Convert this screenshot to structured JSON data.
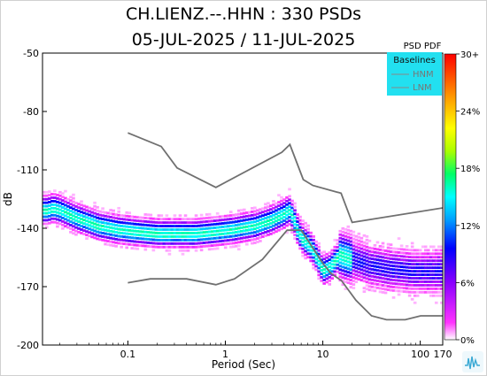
{
  "header": {
    "title": "CH.LIENZ.--.HHN : 330 PSDs",
    "date_range": "05-JUL-2025 / 11-JUL-2025"
  },
  "colorbar": {
    "title": "PSD PDF",
    "ticks": [
      "30+",
      "24%",
      "18%",
      "12%",
      "6%",
      "0%"
    ]
  },
  "legend": {
    "title": "Baselines",
    "items": [
      "HNM",
      "LNM"
    ],
    "background": "#22e0f0"
  },
  "chart_data": {
    "type": "heatmap",
    "title": "CH.LIENZ.--.HHN : 330 PSDs",
    "subtitle": "05-JUL-2025 / 11-JUL-2025",
    "xlabel": "Period (Sec)",
    "ylabel": "dB",
    "xscale": "log",
    "xlim": [
      0.0133,
      170
    ],
    "ylim": [
      -200,
      -50
    ],
    "xticks": [
      0.1,
      1,
      10,
      100,
      170
    ],
    "xtick_labels": [
      "0.1",
      "1",
      "10",
      "100",
      "170"
    ],
    "yticks": [
      -50,
      -80,
      -110,
      -140,
      -170,
      -200
    ],
    "ytick_labels": [
      "-50",
      "-80",
      "-110",
      "-140",
      "-170",
      "-200"
    ],
    "legend_position": "top-right",
    "grid": false,
    "series": [
      {
        "name": "HNM",
        "x": [
          0.1,
          0.22,
          0.32,
          0.8,
          3.8,
          4.6,
          6.3,
          7.9,
          15.4,
          20,
          354
        ],
        "y": [
          -91,
          -98,
          -109,
          -119,
          -101,
          -97,
          -115,
          -118,
          -122,
          -137,
          -127
        ]
      },
      {
        "name": "LNM",
        "x": [
          0.1,
          0.17,
          0.4,
          0.8,
          1.24,
          2.4,
          4.3,
          5.0,
          6.0,
          10,
          12,
          15.6,
          21.9,
          31.6,
          45,
          70,
          101,
          154,
          328,
          600
        ],
        "y": [
          -168,
          -166,
          -166,
          -169,
          -166,
          -156,
          -141,
          -141,
          -141,
          -158,
          -163,
          -167,
          -177,
          -185,
          -187,
          -187,
          -185,
          -185,
          -185,
          -185
        ]
      },
      {
        "name": "mode",
        "x": [
          0.015,
          0.017,
          0.02,
          0.03,
          0.05,
          0.08,
          0.12,
          0.2,
          0.3,
          0.5,
          0.8,
          1.2,
          2,
          3,
          4,
          4.5,
          5,
          5.5,
          6,
          7,
          8,
          9,
          10,
          12,
          15,
          20,
          30,
          50,
          80,
          120,
          170
        ],
        "y": [
          -131,
          -130,
          -131,
          -135,
          -139,
          -141,
          -142,
          -143,
          -143,
          -143,
          -142,
          -141,
          -139,
          -136,
          -133,
          -131,
          -135,
          -141,
          -145,
          -148,
          -152,
          -157,
          -162,
          -160,
          -154,
          -156,
          -159,
          -161,
          -162,
          -162,
          -162
        ]
      }
    ],
    "color_scale": {
      "min": 0,
      "max": 30,
      "unit": "%",
      "colors": [
        "#ffffff",
        "#ff33ff",
        "#8a00ff",
        "#0000ff",
        "#00a0ff",
        "#00ffff",
        "#00ff66",
        "#aaff00",
        "#ffff00",
        "#ff9900",
        "#ff0000"
      ]
    }
  }
}
